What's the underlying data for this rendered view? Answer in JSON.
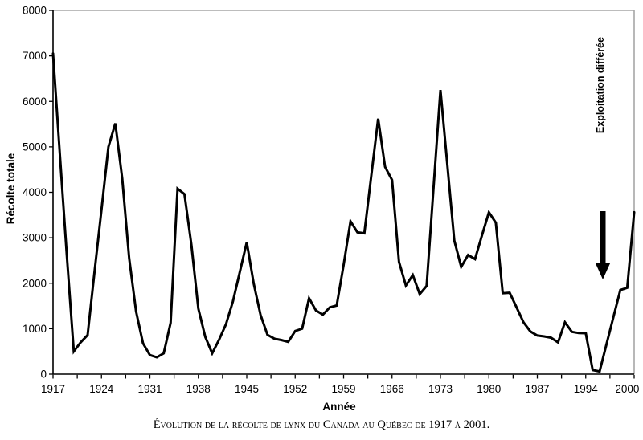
{
  "figure": {
    "caption": "Évolution de la récolte de lynx du Canada au Québec de 1917 à 2001.",
    "background_color": "#ffffff",
    "border_color_top_right": "#a6a6a6",
    "border_color_left_bottom": "#000000"
  },
  "chart_data": {
    "type": "line",
    "title": "",
    "xlabel": "Année",
    "ylabel": "Récolte totale",
    "x_start": 1917,
    "x_step": 1,
    "x_end": 2001,
    "ylim": [
      0,
      8000
    ],
    "y_ticks": [
      0,
      1000,
      2000,
      3000,
      4000,
      5000,
      6000,
      7000,
      8000
    ],
    "x_tick_labels": [
      "1917",
      "1924",
      "1931",
      "1938",
      "1945",
      "1952",
      "1959",
      "1966",
      "1973",
      "1980",
      "1987",
      "1994",
      "2000"
    ],
    "x_tick_label_years": [
      1917,
      1924,
      1931,
      1938,
      1945,
      1952,
      1959,
      1966,
      1973,
      1980,
      1987,
      1994,
      2000
    ],
    "x_minor_tick_step_years": 3.5,
    "grid": false,
    "legend": "none",
    "line_color": "#000000",
    "series": [
      {
        "name": "Récolte totale de lynx",
        "values": [
          7050,
          4800,
          2600,
          500,
          700,
          860,
          2250,
          3620,
          5000,
          5515,
          4300,
          2550,
          1380,
          680,
          420,
          370,
          460,
          1130,
          4080,
          3960,
          2850,
          1440,
          820,
          460,
          760,
          1100,
          1600,
          2250,
          2900,
          2000,
          1300,
          865,
          780,
          750,
          710,
          950,
          1000,
          1670,
          1400,
          1310,
          1470,
          1510,
          2400,
          3360,
          3120,
          3100,
          4360,
          5620,
          4560,
          4270,
          2470,
          1950,
          2180,
          1760,
          1940,
          4100,
          6250,
          4600,
          2940,
          2360,
          2620,
          2530,
          3050,
          3560,
          3330,
          1780,
          1790,
          1470,
          1140,
          940,
          850,
          830,
          800,
          700,
          1140,
          930,
          905,
          900,
          90,
          60,
          660,
          1255,
          1850,
          1900,
          3560
        ]
      }
    ],
    "annotation": {
      "text": "Exploitation différée",
      "arrow_direction": "down",
      "arrow_year": 1996,
      "arrow_value_top": 3580,
      "arrow_value_tip": 2100
    }
  }
}
